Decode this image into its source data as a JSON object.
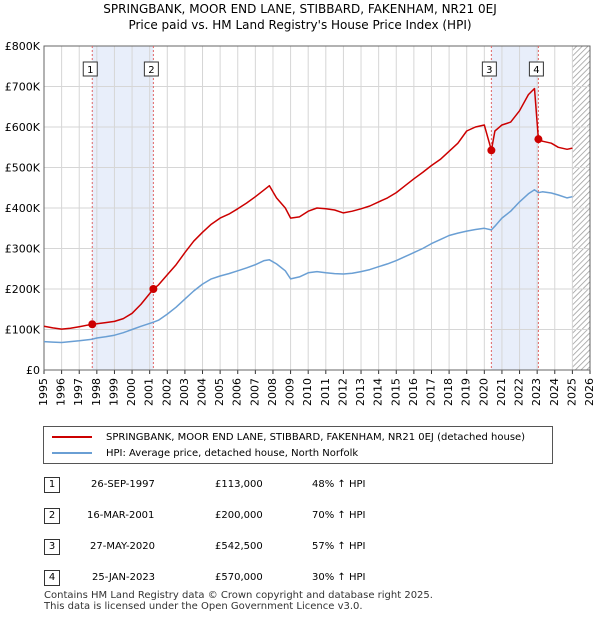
{
  "title_line1": "SPRINGBANK, MOOR END LANE, STIBBARD, FAKENHAM, NR21 0EJ",
  "title_line2": "Price paid vs. HM Land Registry's House Price Index (HPI)",
  "chart_data": {
    "type": "line",
    "xlim": [
      1995,
      2026
    ],
    "ylim": [
      0,
      800000
    ],
    "y_ticks": [
      {
        "value": 0,
        "label": "£0"
      },
      {
        "value": 100000,
        "label": "£100K"
      },
      {
        "value": 200000,
        "label": "£200K"
      },
      {
        "value": 300000,
        "label": "£300K"
      },
      {
        "value": 400000,
        "label": "£400K"
      },
      {
        "value": 500000,
        "label": "£500K"
      },
      {
        "value": 600000,
        "label": "£600K"
      },
      {
        "value": 700000,
        "label": "£700K"
      },
      {
        "value": 800000,
        "label": "£800K"
      }
    ],
    "x_ticks": [
      1995,
      1996,
      1997,
      1998,
      1999,
      2000,
      2001,
      2002,
      2003,
      2004,
      2005,
      2006,
      2007,
      2008,
      2009,
      2010,
      2011,
      2012,
      2013,
      2014,
      2015,
      2016,
      2017,
      2018,
      2019,
      2020,
      2021,
      2022,
      2023,
      2024,
      2025,
      2026
    ],
    "shaded_ranges": [
      [
        1997.74,
        2001.21
      ],
      [
        2020.4,
        2023.07
      ]
    ],
    "future_from": 2025.0,
    "series": [
      {
        "name": "SPRINGBANK, MOOR END LANE, STIBBARD, FAKENHAM, NR21 0EJ (detached house)",
        "color": "#cc0000",
        "points": [
          [
            1995.0,
            108000
          ],
          [
            1995.5,
            104000
          ],
          [
            1996.0,
            101000
          ],
          [
            1996.5,
            103000
          ],
          [
            1997.0,
            107000
          ],
          [
            1997.74,
            113000
          ],
          [
            1998.0,
            114000
          ],
          [
            1998.5,
            117000
          ],
          [
            1999.0,
            120000
          ],
          [
            1999.5,
            127000
          ],
          [
            2000.0,
            140000
          ],
          [
            2000.5,
            162000
          ],
          [
            2001.21,
            200000
          ],
          [
            2001.5,
            210000
          ],
          [
            2002.0,
            235000
          ],
          [
            2002.5,
            260000
          ],
          [
            2003.0,
            290000
          ],
          [
            2003.5,
            318000
          ],
          [
            2004.0,
            340000
          ],
          [
            2004.5,
            360000
          ],
          [
            2005.0,
            375000
          ],
          [
            2005.5,
            385000
          ],
          [
            2006.0,
            398000
          ],
          [
            2006.5,
            412000
          ],
          [
            2007.0,
            428000
          ],
          [
            2007.5,
            445000
          ],
          [
            2007.8,
            455000
          ],
          [
            2008.2,
            425000
          ],
          [
            2008.7,
            400000
          ],
          [
            2009.0,
            375000
          ],
          [
            2009.5,
            378000
          ],
          [
            2010.0,
            392000
          ],
          [
            2010.5,
            400000
          ],
          [
            2011.0,
            398000
          ],
          [
            2011.5,
            395000
          ],
          [
            2012.0,
            388000
          ],
          [
            2012.5,
            392000
          ],
          [
            2013.0,
            398000
          ],
          [
            2013.5,
            405000
          ],
          [
            2014.0,
            415000
          ],
          [
            2014.5,
            425000
          ],
          [
            2015.0,
            438000
          ],
          [
            2015.5,
            455000
          ],
          [
            2016.0,
            472000
          ],
          [
            2016.5,
            488000
          ],
          [
            2017.0,
            505000
          ],
          [
            2017.5,
            520000
          ],
          [
            2018.0,
            540000
          ],
          [
            2018.5,
            560000
          ],
          [
            2019.0,
            590000
          ],
          [
            2019.5,
            600000
          ],
          [
            2020.0,
            605000
          ],
          [
            2020.4,
            542500
          ],
          [
            2020.6,
            590000
          ],
          [
            2021.0,
            605000
          ],
          [
            2021.5,
            612000
          ],
          [
            2022.0,
            640000
          ],
          [
            2022.5,
            680000
          ],
          [
            2022.85,
            695000
          ],
          [
            2023.07,
            570000
          ],
          [
            2023.3,
            565000
          ],
          [
            2023.8,
            560000
          ],
          [
            2024.2,
            550000
          ],
          [
            2024.7,
            545000
          ],
          [
            2025.0,
            548000
          ]
        ]
      },
      {
        "name": "HPI: Average price, detached house, North Norfolk",
        "color": "#6a9fd4",
        "points": [
          [
            1995.0,
            70000
          ],
          [
            1995.5,
            69000
          ],
          [
            1996.0,
            68000
          ],
          [
            1996.5,
            70000
          ],
          [
            1997.0,
            72000
          ],
          [
            1997.74,
            76000
          ],
          [
            1998.0,
            79000
          ],
          [
            1998.5,
            82000
          ],
          [
            1999.0,
            86000
          ],
          [
            1999.5,
            92000
          ],
          [
            2000.0,
            100000
          ],
          [
            2000.5,
            108000
          ],
          [
            2001.21,
            118000
          ],
          [
            2001.5,
            123000
          ],
          [
            2002.0,
            138000
          ],
          [
            2002.5,
            155000
          ],
          [
            2003.0,
            175000
          ],
          [
            2003.5,
            195000
          ],
          [
            2004.0,
            212000
          ],
          [
            2004.5,
            225000
          ],
          [
            2005.0,
            232000
          ],
          [
            2005.5,
            238000
          ],
          [
            2006.0,
            245000
          ],
          [
            2006.5,
            252000
          ],
          [
            2007.0,
            260000
          ],
          [
            2007.5,
            270000
          ],
          [
            2007.8,
            272000
          ],
          [
            2008.2,
            262000
          ],
          [
            2008.7,
            245000
          ],
          [
            2009.0,
            225000
          ],
          [
            2009.5,
            230000
          ],
          [
            2010.0,
            240000
          ],
          [
            2010.5,
            243000
          ],
          [
            2011.0,
            240000
          ],
          [
            2011.5,
            238000
          ],
          [
            2012.0,
            237000
          ],
          [
            2012.5,
            239000
          ],
          [
            2013.0,
            243000
          ],
          [
            2013.5,
            248000
          ],
          [
            2014.0,
            255000
          ],
          [
            2014.5,
            262000
          ],
          [
            2015.0,
            270000
          ],
          [
            2015.5,
            280000
          ],
          [
            2016.0,
            290000
          ],
          [
            2016.5,
            300000
          ],
          [
            2017.0,
            312000
          ],
          [
            2017.5,
            322000
          ],
          [
            2018.0,
            332000
          ],
          [
            2018.5,
            338000
          ],
          [
            2019.0,
            343000
          ],
          [
            2019.5,
            347000
          ],
          [
            2020.0,
            350000
          ],
          [
            2020.4,
            346000
          ],
          [
            2020.6,
            355000
          ],
          [
            2021.0,
            375000
          ],
          [
            2021.5,
            392000
          ],
          [
            2022.0,
            415000
          ],
          [
            2022.5,
            435000
          ],
          [
            2022.85,
            445000
          ],
          [
            2023.07,
            438000
          ],
          [
            2023.3,
            440000
          ],
          [
            2023.8,
            437000
          ],
          [
            2024.2,
            432000
          ],
          [
            2024.7,
            425000
          ],
          [
            2025.0,
            428000
          ]
        ]
      }
    ],
    "sales": [
      {
        "id": "1",
        "x": 1997.74,
        "price": 113000
      },
      {
        "id": "2",
        "x": 2001.21,
        "price": 200000
      },
      {
        "id": "3",
        "x": 2020.4,
        "price": 542500
      },
      {
        "id": "4",
        "x": 2023.07,
        "price": 570000
      }
    ]
  },
  "legend": {
    "red_label": "SPRINGBANK, MOOR END LANE, STIBBARD, FAKENHAM, NR21 0EJ (detached house)",
    "blue_label": "HPI: Average price, detached house, North Norfolk",
    "red_color": "#cc0000",
    "blue_color": "#6a9fd4"
  },
  "sales_table": [
    {
      "num": "1",
      "date": "26-SEP-1997",
      "price": "£113,000",
      "hpi": "48% ↑ HPI"
    },
    {
      "num": "2",
      "date": "16-MAR-2001",
      "price": "£200,000",
      "hpi": "70% ↑ HPI"
    },
    {
      "num": "3",
      "date": "27-MAY-2020",
      "price": "£542,500",
      "hpi": "57% ↑ HPI"
    },
    {
      "num": "4",
      "date": "25-JAN-2023",
      "price": "£570,000",
      "hpi": "30% ↑ HPI"
    }
  ],
  "footer_line1": "Contains HM Land Registry data © Crown copyright and database right 2025.",
  "footer_line2": "This data is licensed under the Open Government Licence v3.0."
}
